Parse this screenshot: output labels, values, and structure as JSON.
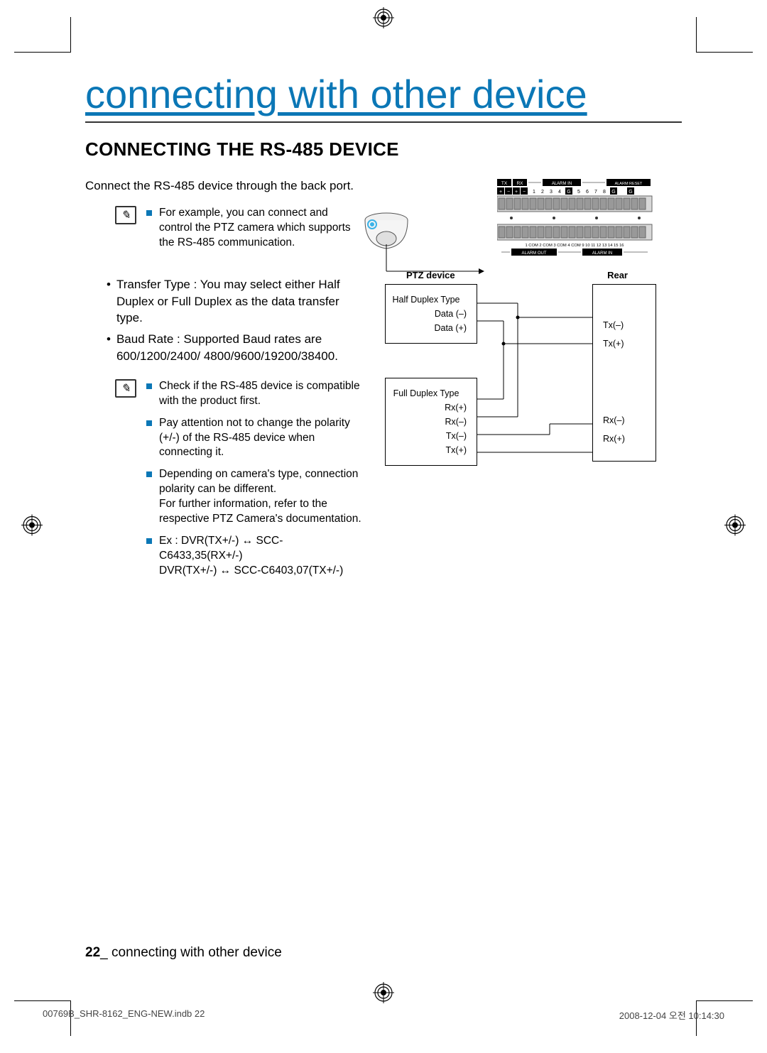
{
  "title": "connecting with other device",
  "subtitle": "CONNECTING THE RS-485 DEVICE",
  "intro": "Connect the RS-485 device through the back port.",
  "notes1": [
    "For example, you can connect and control the PTZ camera which supports the RS-485 communication."
  ],
  "bullets": [
    "Transfer Type : You may select either Half Duplex or Full Duplex as the data transfer type.",
    "Baud Rate : Supported Baud rates are 600/1200/2400/ 4800/9600/19200/38400."
  ],
  "notes2": [
    "Check if the RS-485 device is compatible with the product first.",
    "Pay attention not to change the polarity (+/-) of the RS-485 device when connecting it.",
    "Depending on camera's type, connection polarity can be different.\nFor further information, refer to the respective PTZ Camera's documentation.",
    "Ex : DVR(TX+/-) ↔ SCC-C6433,35(RX+/-)\n       DVR(TX+/-) ↔ SCC-C6403,07(TX+/-)"
  ],
  "diagram": {
    "ptz_header": "PTZ device",
    "rear_header": "Rear",
    "half_title": "Half Duplex Type",
    "half_pins": [
      "Data (–)",
      "Data (+)"
    ],
    "full_title": "Full Duplex Type",
    "full_pins": [
      "Rx(+)",
      "Rx(–)",
      "Tx(–)",
      "Tx(+)"
    ],
    "rear_pins": [
      "Tx(–)",
      "Tx(+)",
      "Rx(–)",
      "Rx(+)"
    ],
    "top_labels_black": [
      "TX",
      "RX",
      "ALARM IN",
      "ALARM RESET"
    ],
    "top_numbers": "1 2 3 4    5 6 7 8",
    "bottom_numbers": "1 COM 2 COM 3 COM 4 COM 9 10 11 12 13 14 15 16",
    "bottom_labels": [
      "ALARM OUT",
      "ALARM IN"
    ]
  },
  "page_number": "22",
  "footer_text": "connecting with other device",
  "print_left": "00769B_SHR-8162_ENG-NEW.indb   22",
  "print_right": "2008-12-04   오전 10:14:30",
  "colors": {
    "title_blue": "#0b77b6",
    "bullet": "#0b77b6"
  }
}
